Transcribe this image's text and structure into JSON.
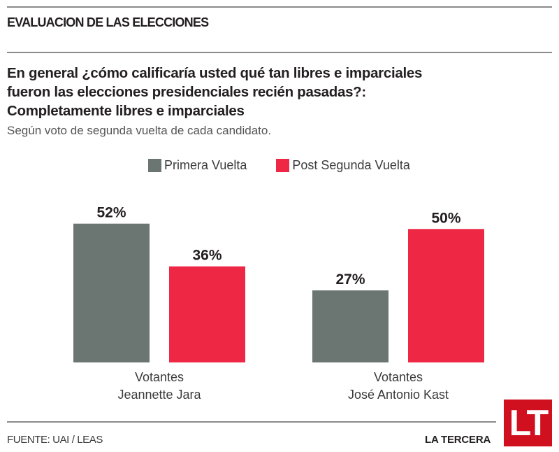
{
  "header": {
    "section_title": "EVALUACION DE LAS ELECCIONES",
    "question_lines": [
      "En general ¿cómo calificaría usted qué tan libres e imparciales",
      "fueron las elecciones presidenciales recién pasadas?:",
      "Completamente libres e imparciales"
    ],
    "subtitle": "Según voto de segunda vuelta de cada candidato."
  },
  "chart_data": {
    "type": "bar",
    "title": "Completamente libres e imparciales",
    "subtitle": "Según voto de segunda vuelta de cada candidato.",
    "categories": [
      [
        "Votantes",
        "Jeannette Jara"
      ],
      [
        "Votantes",
        "José Antonio Kast"
      ]
    ],
    "series": [
      {
        "name": "Primera Vuelta",
        "color": "#6b7572",
        "values": [
          52,
          27
        ]
      },
      {
        "name": "Post Segunda Vuelta",
        "color": "#ee2744",
        "values": [
          36,
          50
        ]
      }
    ],
    "value_suffix": "%",
    "ylim": [
      0,
      100
    ],
    "grid": false,
    "legend_position": "top-center",
    "xlabel": "",
    "ylabel": ""
  },
  "footer": {
    "source": "FUENTE: UAI / LEAS",
    "brand": "LA TERCERA",
    "logo_text": "LT"
  }
}
